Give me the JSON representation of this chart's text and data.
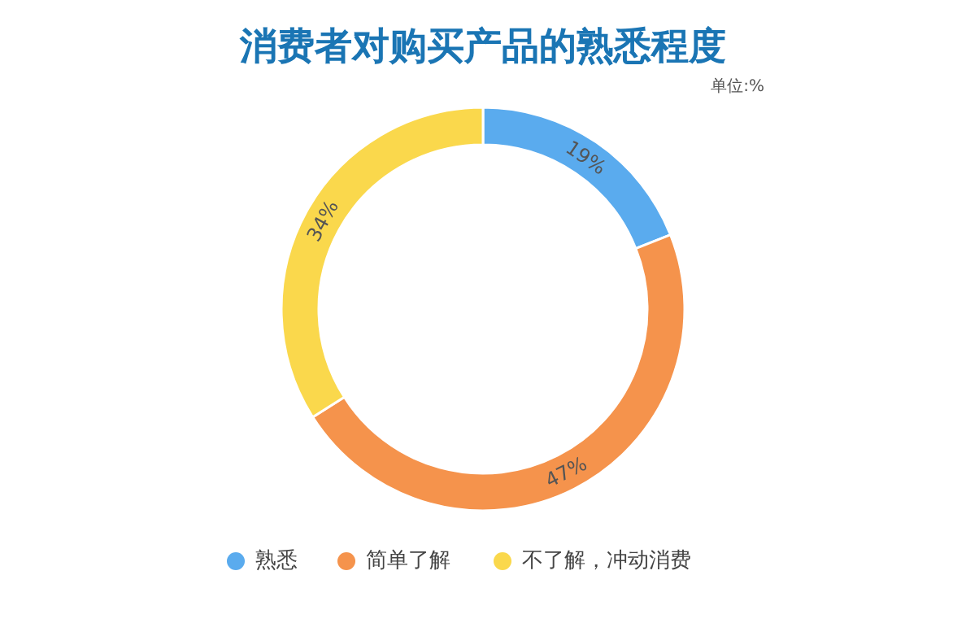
{
  "chart_data": {
    "type": "donut",
    "title": "消费者对购买产品的熟悉程度",
    "annotations": [
      "单位:%"
    ],
    "categories": [
      "熟悉",
      "简单了解",
      "不了解，冲动消费"
    ],
    "values": [
      19,
      47,
      34
    ],
    "value_labels": [
      "19%",
      "47%",
      "34%"
    ],
    "colors": [
      "#5aabee",
      "#f5934c",
      "#fad84c"
    ],
    "legend": "bottom"
  }
}
